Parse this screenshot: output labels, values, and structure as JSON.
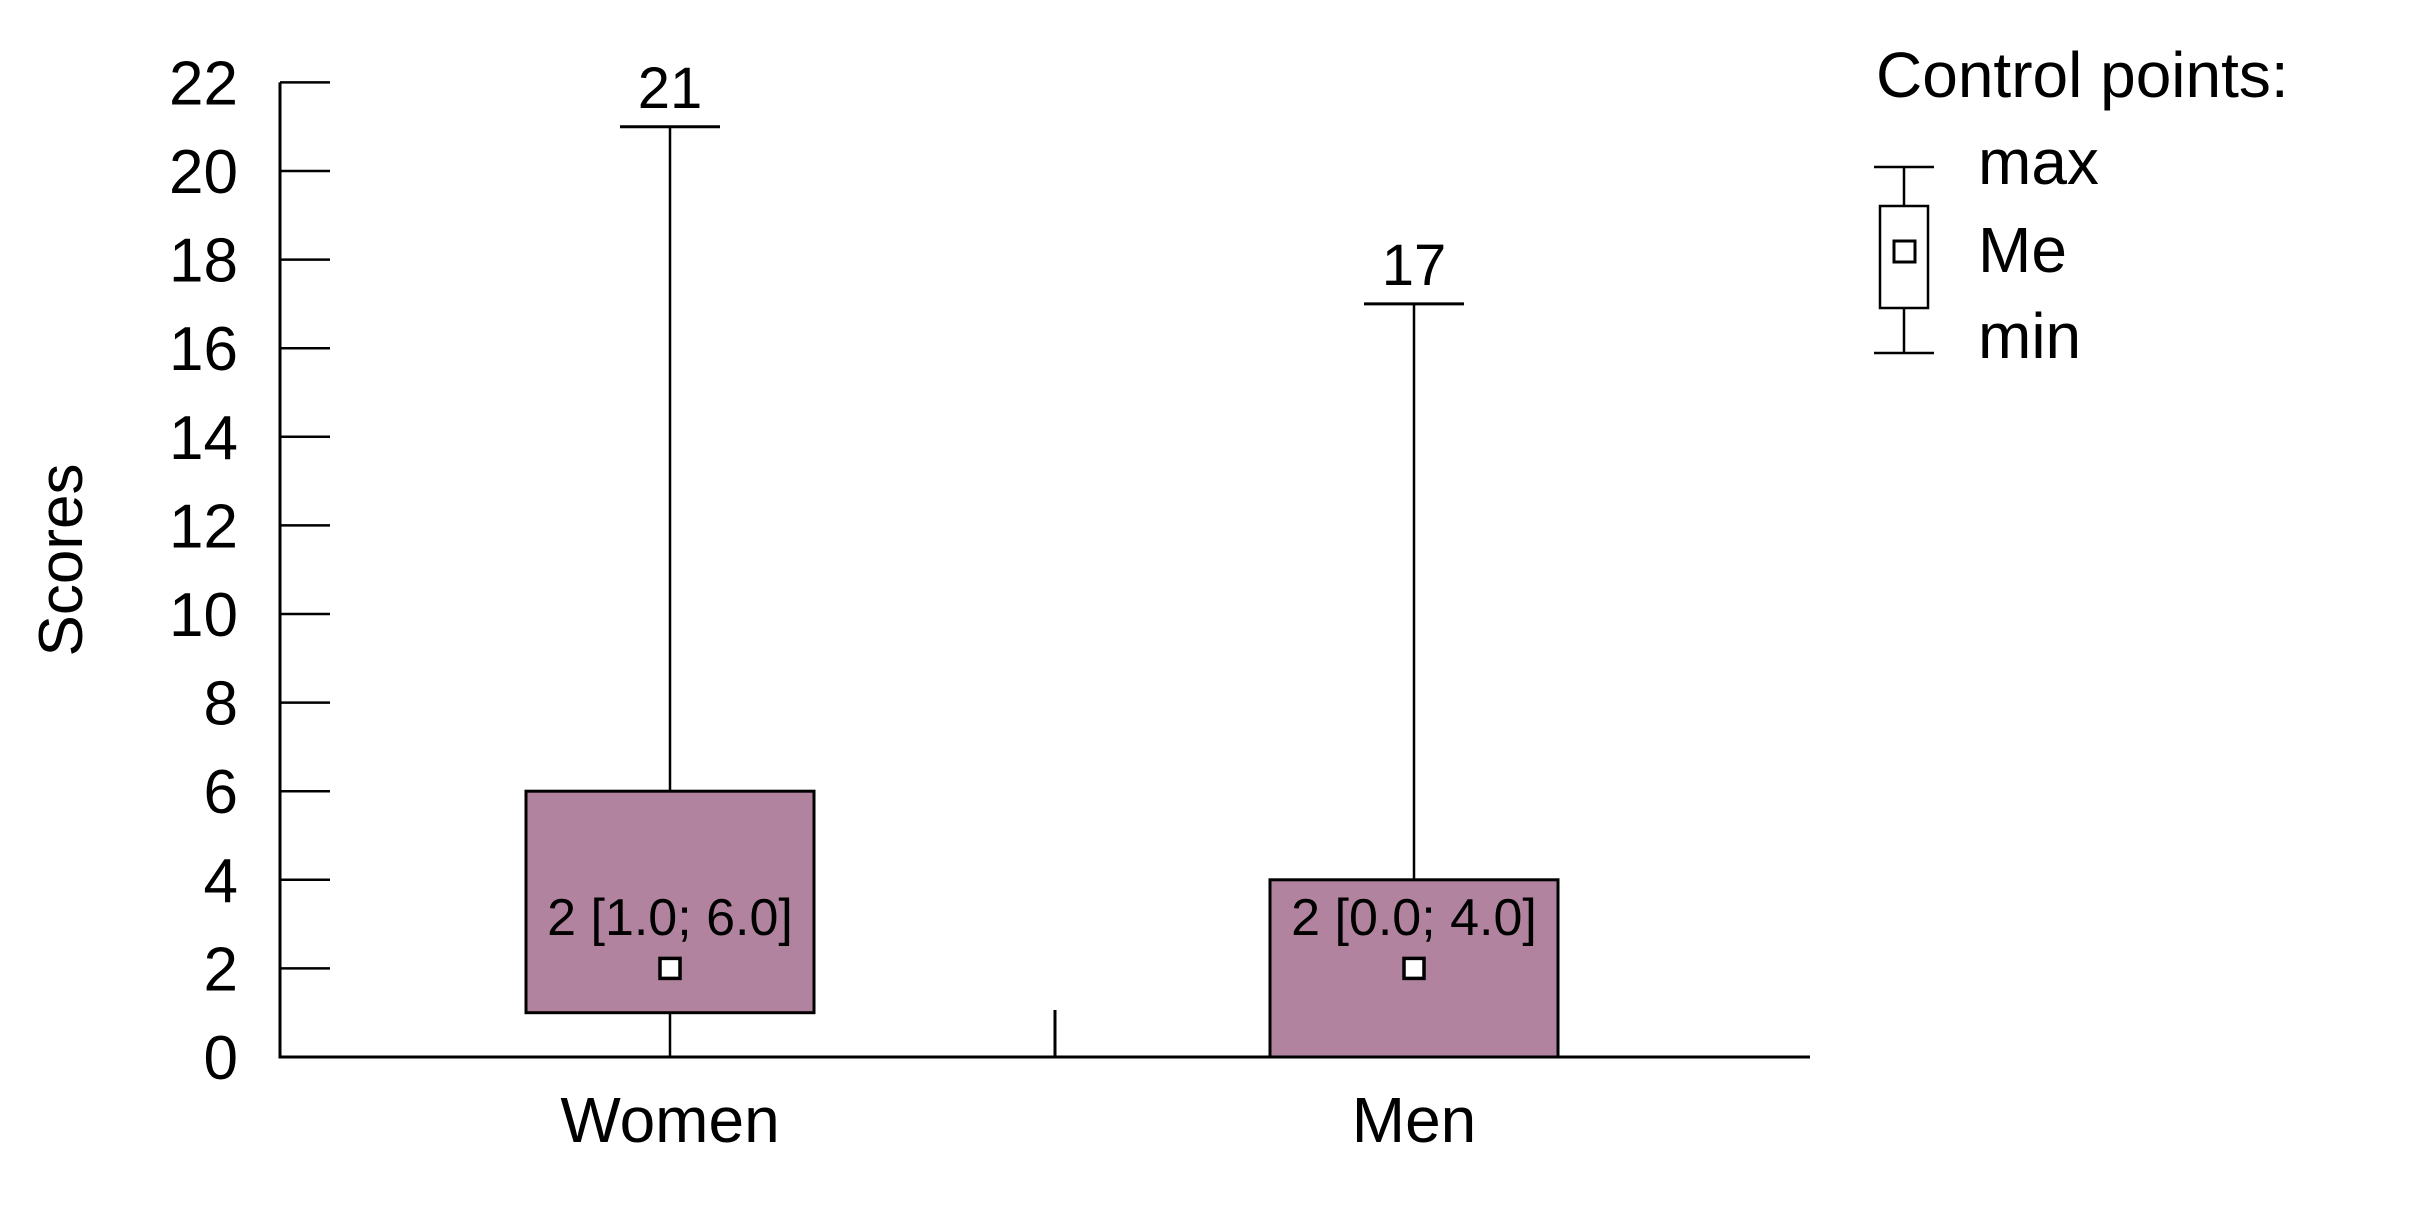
{
  "chart_data": {
    "type": "boxplot",
    "title": "",
    "ylabel": "Scores",
    "y_axis": {
      "min": 0,
      "max": 22,
      "step": 2,
      "ticks": [
        22,
        20,
        18,
        16,
        14,
        12,
        10,
        8,
        6,
        4,
        2,
        0
      ]
    },
    "categories": [
      "Women",
      "Men"
    ],
    "series": [
      {
        "name": "Women",
        "min": 0,
        "q1": 1.0,
        "median": 2,
        "q3": 6.0,
        "max": 21,
        "box_label": "2 [1.0; 6.0]",
        "max_label": "21"
      },
      {
        "name": "Men",
        "min": 0,
        "q1": 0.0,
        "median": 2,
        "q3": 4.0,
        "max": 17,
        "box_label": "2 [0.0; 4.0]",
        "max_label": "17"
      }
    ],
    "legend": {
      "title": "Control points:",
      "items": [
        "max",
        "Me",
        "min"
      ],
      "position": "top-right"
    },
    "grid": false,
    "colors": {
      "box_fill": "#b1839f",
      "box_border": "#000000",
      "line": "#000000",
      "median_fill": "#ffffff",
      "text": "#000000",
      "background": "#ffffff"
    }
  }
}
